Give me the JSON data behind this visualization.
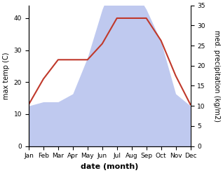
{
  "months": [
    "Jan",
    "Feb",
    "Mar",
    "Apr",
    "May",
    "Jun",
    "Jul",
    "Aug",
    "Sep",
    "Oct",
    "Nov",
    "Dec"
  ],
  "max_temp": [
    13,
    21,
    27,
    27,
    27,
    32,
    40,
    40,
    40,
    33,
    22,
    13
  ],
  "precipitation": [
    10,
    11,
    11,
    13,
    22,
    34,
    43,
    40,
    34,
    26,
    13,
    10
  ],
  "temp_color": "#c0392b",
  "precip_color_fill": "#b8c4ee",
  "left_ylim": [
    0,
    44
  ],
  "right_ylim": [
    0,
    35
  ],
  "left_yticks": [
    0,
    10,
    20,
    30,
    40
  ],
  "right_yticks": [
    0,
    5,
    10,
    15,
    20,
    25,
    30,
    35
  ],
  "ylabel_left": "max temp (C)",
  "ylabel_right": "med. precipitation (kg/m2)",
  "xlabel": "date (month)",
  "figsize": [
    3.18,
    2.47
  ],
  "dpi": 100,
  "label_fontsize": 7,
  "tick_fontsize": 6.5,
  "xlabel_fontsize": 8,
  "line_width": 1.5
}
